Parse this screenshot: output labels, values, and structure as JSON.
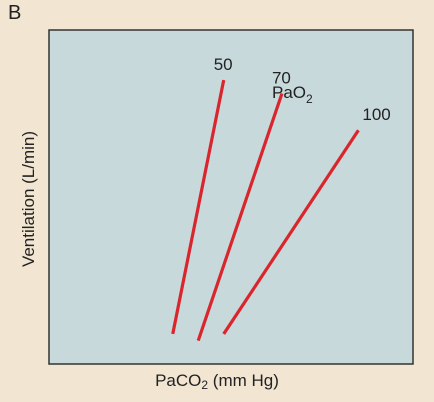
{
  "panel_label": "B",
  "chart_data": {
    "type": "line",
    "title": "",
    "xlabel": "PaCO2 (mm Hg)",
    "ylabel": "Ventilation (L/min)",
    "legend_title": "PaO2",
    "grid": false,
    "colors": {
      "background": "#f2e6d2",
      "plot_area": "#c8d9dc",
      "line": "#d9262c",
      "frame": "#333333"
    },
    "xlim": [
      0,
      100
    ],
    "ylim": [
      0,
      100
    ],
    "series": [
      {
        "name": "50",
        "x": [
          34,
          48
        ],
        "y": [
          9,
          85
        ]
      },
      {
        "name": "70",
        "x": [
          41,
          64
        ],
        "y": [
          7,
          81
        ]
      },
      {
        "name": "100",
        "x": [
          48,
          85
        ],
        "y": [
          9,
          70
        ]
      }
    ]
  }
}
